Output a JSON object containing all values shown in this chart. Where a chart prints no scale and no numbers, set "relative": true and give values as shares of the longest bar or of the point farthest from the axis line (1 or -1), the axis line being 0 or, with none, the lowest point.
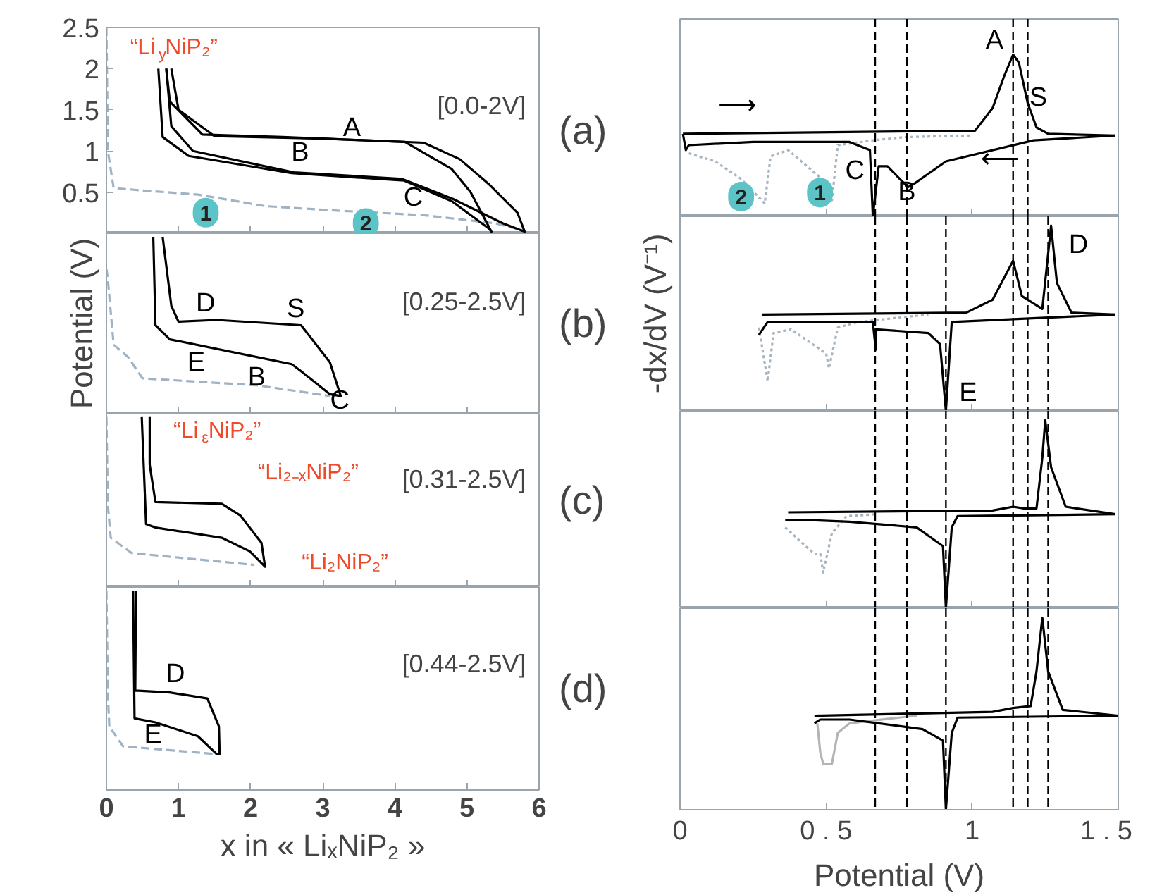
{
  "chart_data": [
    {
      "type": "line",
      "title": "(a)",
      "subtitle": "[0.0-2V]",
      "xlim": [
        0,
        6
      ],
      "ylim": [
        0,
        2.5
      ],
      "tick_labels": "y",
      "xticks": [
        {
          "value": 0,
          "label": null
        },
        {
          "value": 1,
          "label": null
        },
        {
          "value": 2,
          "label": null
        },
        {
          "value": 3,
          "label": null
        },
        {
          "value": 4,
          "label": null
        },
        {
          "value": 5,
          "label": null
        },
        {
          "value": 6,
          "label": null
        }
      ],
      "yticks": [
        0.5,
        1,
        1.5,
        2,
        2.5
      ],
      "series": [
        {
          "color": "#9fb3c4",
          "line_style": "dashed",
          "x": [
            0,
            0.02,
            0.1,
            0.5,
            1.27,
            2.2,
            3.1,
            4.4,
            5.4,
            5.8
          ],
          "values": [
            2.5,
            1.0,
            0.55,
            0.52,
            0.47,
            0.33,
            0.28,
            0.22,
            0.12,
            0.03
          ]
        },
        {
          "color": "#000000",
          "line_style": "solid",
          "x": [
            0.72,
            0.78,
            1.14,
            2.57,
            4.13,
            4.79,
            5.3,
            5.34,
            5.05,
            4.79,
            4.14,
            2.44,
            1.33,
            0.88,
            0.83
          ],
          "values": [
            2.0,
            1.17,
            0.94,
            0.73,
            0.64,
            0.39,
            0.06,
            0.02,
            0.5,
            0.78,
            1.11,
            1.17,
            1.2,
            1.6,
            2.0
          ]
        },
        {
          "color": "#000000",
          "line_style": "solid",
          "x": [
            0.83,
            0.9,
            1.2,
            2.6,
            4.1,
            4.8,
            5.5,
            5.8,
            5.7,
            5.3,
            4.9,
            4.4,
            3.0,
            1.5,
            1.0,
            0.9
          ],
          "values": [
            2.0,
            1.3,
            1.0,
            0.74,
            0.66,
            0.42,
            0.12,
            0.02,
            0.25,
            0.6,
            0.9,
            1.1,
            1.15,
            1.18,
            1.5,
            2.0
          ]
        }
      ],
      "annotations": [
        "“Li$_{y}$NiP₂”",
        "A",
        "B",
        "C",
        "1",
        "2"
      ]
    },
    {
      "type": "line",
      "relative": true,
      "title": "(b)",
      "subtitle": "[0.25-2.5V]",
      "ylabel": "Potential (V)",
      "xlim": [
        0,
        6
      ],
      "tick_labels": false,
      "xticks": [
        {
          "value": 0,
          "label": null
        },
        {
          "value": 1,
          "label": null
        },
        {
          "value": 2,
          "label": null
        },
        {
          "value": 3,
          "label": null
        },
        {
          "value": 4,
          "label": null
        },
        {
          "value": 5,
          "label": null
        },
        {
          "value": 6,
          "label": null
        }
      ],
      "series": [
        {
          "color": "#9fb3c4",
          "line_style": "dashed",
          "x": [
            0,
            0.02,
            0.1,
            0.3,
            0.5,
            2.1,
            3.1
          ],
          "values": [
            0.82,
            0.76,
            0.39,
            0.32,
            0.2,
            0.16,
            0.1
          ]
        },
        {
          "color": "#000000",
          "line_style": "solid",
          "x": [
            0.65,
            0.68,
            0.88,
            2.57,
            2.7,
            3.1,
            3.25,
            3.1,
            2.7,
            1.53,
            1.0,
            0.9,
            0.78
          ],
          "values": [
            1,
            0.5,
            0.42,
            0.28,
            0.24,
            0.11,
            0.1,
            0.29,
            0.5,
            0.53,
            0.52,
            0.61,
            1
          ]
        }
      ],
      "annotations": [
        "D",
        "S",
        "E",
        "B",
        "C"
      ]
    },
    {
      "type": "line",
      "relative": true,
      "title": "(c)",
      "subtitle": "[0.31-2.5V]",
      "xlim": [
        0,
        6
      ],
      "tick_labels": false,
      "xticks": [
        {
          "value": 0,
          "label": null
        },
        {
          "value": 1,
          "label": null
        },
        {
          "value": 2,
          "label": null
        },
        {
          "value": 3,
          "label": null
        },
        {
          "value": 4,
          "label": null
        },
        {
          "value": 5,
          "label": null
        },
        {
          "value": 6,
          "label": null
        }
      ],
      "series": [
        {
          "color": "#9fb3c4",
          "line_style": "dashed",
          "x": [
            0,
            0.02,
            0.06,
            0.35,
            2.05
          ],
          "values": [
            1,
            0.48,
            0.29,
            0.2,
            0.13
          ]
        },
        {
          "color": "#000000",
          "line_style": "solid",
          "x": [
            0.49,
            0.55,
            0.68,
            1.6,
            1.99,
            2.2,
            2.15,
            1.86,
            1.6,
            0.68,
            0.6,
            0.6
          ],
          "values": [
            1,
            0.37,
            0.35,
            0.29,
            0.21,
            0.12,
            0.26,
            0.42,
            0.49,
            0.5,
            0.72,
            1
          ]
        }
      ],
      "annotations": [
        "“Li$_{ε}$NiP₂”",
        "“Li₂₋ₓNiP₂”",
        "“Li₂NiP₂”"
      ]
    },
    {
      "type": "line",
      "relative": true,
      "title": "(d)",
      "subtitle": "[0.44-2.5V]",
      "xlabel": "x in « LiₓNiP₂ »",
      "xlim": [
        0,
        6
      ],
      "tick_labels": "x",
      "xticks": [
        0,
        1,
        2,
        3,
        4,
        5,
        6
      ],
      "series": [
        {
          "color": "#9fb3c4",
          "line_style": "dashed",
          "x": [
            0,
            0.02,
            0.04,
            0.23,
            1.53
          ],
          "values": [
            1,
            0.48,
            0.32,
            0.22,
            0.18
          ]
        },
        {
          "color": "#000000",
          "line_style": "solid",
          "x": [
            0.37,
            0.39,
            0.68,
            1.27,
            1.53,
            1.57,
            1.56,
            1.4,
            0.88,
            0.4,
            0.41
          ],
          "values": [
            1,
            0.36,
            0.34,
            0.27,
            0.18,
            0.18,
            0.32,
            0.46,
            0.49,
            0.5,
            1
          ]
        }
      ],
      "annotations": [
        "D",
        "E"
      ]
    },
    {
      "type": "line",
      "relative": true,
      "xlim": [
        0,
        1.5
      ],
      "tick_labels": false,
      "xticks": [
        {
          "value": 0,
          "label": null
        },
        {
          "value": 0.5,
          "label": null
        },
        {
          "value": 1,
          "label": null
        },
        {
          "value": 1.5,
          "label": null
        }
      ],
      "series": [
        {
          "color": "#a8b4bf",
          "line_style": "dotted",
          "x": [
            0.03,
            0.12,
            0.21,
            0.29,
            0.31,
            0.37,
            0.48,
            0.52,
            0.54,
            0.66,
            0.77,
            1.0
          ],
          "values": [
            0.39,
            0.34,
            0.23,
            0.08,
            0.37,
            0.41,
            0.24,
            0.1,
            0.44,
            0.47,
            0.49,
            0.5
          ]
        },
        {
          "color": "#000000",
          "line_style": "solid",
          "x": [
            0.01,
            1.01,
            1.07,
            1.11,
            1.14,
            1.16,
            1.19,
            1.22,
            1.26,
            1.49
          ],
          "values": [
            0.51,
            0.53,
            0.67,
            0.87,
            1,
            0.95,
            0.7,
            0.55,
            0.51,
            0.5
          ]
        },
        {
          "color": "#000000",
          "line_style": "solid",
          "x": [
            1.49,
            1.21,
            0.91,
            0.8,
            0.78,
            0.71,
            0.68,
            0.66,
            0.65,
            0.58,
            0.25,
            0.03,
            0.02,
            0.01
          ],
          "values": [
            0.5,
            0.47,
            0.34,
            0.2,
            0.18,
            0.31,
            0.31,
            0,
            0.41,
            0.46,
            0.46,
            0.44,
            0.41,
            0.51
          ]
        }
      ],
      "ref_lines": [
        {
          "axis": "x",
          "value": 0.668,
          "color": "#000000",
          "line_style": "dashed"
        },
        {
          "axis": "x",
          "value": 0.777,
          "color": "#000000",
          "line_style": "dashed"
        },
        {
          "axis": "x",
          "value": 1.14,
          "color": "#000000",
          "line_style": "dashed"
        },
        {
          "axis": "x",
          "value": 1.19,
          "color": "#000000",
          "line_style": "dashed"
        }
      ],
      "annotations": [
        "A",
        "S",
        "C",
        "B",
        "1",
        "2",
        "⟶",
        "⟵"
      ]
    },
    {
      "type": "line",
      "relative": true,
      "ylabel": "-dx/dV (V⁻¹)",
      "xlim": [
        0,
        1.5
      ],
      "tick_labels": false,
      "xticks": [
        {
          "value": 0,
          "label": null
        },
        {
          "value": 0.5,
          "label": null
        },
        {
          "value": 1,
          "label": null
        },
        {
          "value": 1.5,
          "label": null
        }
      ],
      "series": [
        {
          "color": "#a8b4bf",
          "line_style": "dotted",
          "x": [
            0.27,
            0.3,
            0.32,
            0.38,
            0.5,
            0.51,
            0.54,
            0.61,
            0.85
          ],
          "values": [
            0.45,
            0.16,
            0.42,
            0.44,
            0.31,
            0.23,
            0.45,
            0.48,
            0.52
          ]
        },
        {
          "color": "#000000",
          "line_style": "solid",
          "x": [
            0.28,
            0.98,
            1.07,
            1.14,
            1.17,
            1.24,
            1.27,
            1.29,
            1.34,
            1.49
          ],
          "values": [
            0.52,
            0.53,
            0.6,
            0.81,
            0.62,
            0.55,
            1,
            0.69,
            0.53,
            0.52
          ]
        },
        {
          "color": "#000000",
          "line_style": "solid",
          "x": [
            1.49,
            0.93,
            0.91,
            0.89,
            0.85,
            0.67,
            0.67,
            0.66,
            0.42,
            0.3,
            0.27
          ],
          "values": [
            0.52,
            0.48,
            0,
            0.36,
            0.42,
            0.44,
            0.33,
            0.48,
            0.48,
            0.48,
            0.41
          ]
        }
      ],
      "ref_lines": [
        {
          "axis": "x",
          "value": 0.668,
          "color": "#000000",
          "line_style": "dashed"
        },
        {
          "axis": "x",
          "value": 0.777,
          "color": "#000000",
          "line_style": "dashed"
        },
        {
          "axis": "x",
          "value": 0.91,
          "color": "#000000",
          "line_style": "dashed"
        },
        {
          "axis": "x",
          "value": 1.14,
          "color": "#000000",
          "line_style": "dashed"
        },
        {
          "axis": "x",
          "value": 1.19,
          "color": "#000000",
          "line_style": "dashed"
        },
        {
          "axis": "x",
          "value": 1.26,
          "color": "#000000",
          "line_style": "dashed"
        }
      ],
      "annotations": [
        "D",
        "E"
      ]
    },
    {
      "type": "line",
      "relative": true,
      "xlim": [
        0,
        1.5
      ],
      "tick_labels": false,
      "xticks": [
        {
          "value": 0,
          "label": null
        },
        {
          "value": 0.5,
          "label": null
        },
        {
          "value": 1,
          "label": null
        },
        {
          "value": 1.5,
          "label": null
        }
      ],
      "series": [
        {
          "color": "#a8b4bf",
          "line_style": "dotted",
          "x": [
            0.36,
            0.43,
            0.46,
            0.48,
            0.49,
            0.52,
            0.57,
            0.67
          ],
          "values": [
            0.43,
            0.33,
            0.29,
            0.29,
            0.19,
            0.4,
            0.49,
            0.5
          ]
        },
        {
          "color": "#000000",
          "line_style": "solid",
          "x": [
            0.37,
            1.07,
            1.14,
            1.18,
            1.22,
            1.24,
            1.25,
            1.27,
            1.32,
            1.49
          ],
          "values": [
            0.51,
            0.52,
            0.54,
            0.53,
            0.53,
            0.8,
            1,
            0.75,
            0.54,
            0.5
          ]
        },
        {
          "color": "#000000",
          "line_style": "solid",
          "x": [
            1.49,
            0.95,
            0.93,
            0.91,
            0.9,
            0.81,
            0.58,
            0.42,
            0.36
          ],
          "values": [
            0.5,
            0.49,
            0.43,
            0,
            0.33,
            0.43,
            0.46,
            0.47,
            0.47
          ]
        }
      ],
      "ref_lines": [
        {
          "axis": "x",
          "value": 0.668,
          "color": "#000000",
          "line_style": "dashed"
        },
        {
          "axis": "x",
          "value": 0.777,
          "color": "#000000",
          "line_style": "dashed"
        },
        {
          "axis": "x",
          "value": 0.91,
          "color": "#000000",
          "line_style": "dashed"
        },
        {
          "axis": "x",
          "value": 1.14,
          "color": "#000000",
          "line_style": "dashed"
        },
        {
          "axis": "x",
          "value": 1.19,
          "color": "#000000",
          "line_style": "dashed"
        },
        {
          "axis": "x",
          "value": 1.26,
          "color": "#000000",
          "line_style": "dashed"
        }
      ]
    },
    {
      "type": "line",
      "relative": true,
      "xlabel": "Potential (V)",
      "xlim": [
        0,
        1.5
      ],
      "tick_labels": "x",
      "xticks": [
        0,
        {
          "value": 0.5,
          "label": "0 . 5"
        },
        1,
        {
          "value": 1.5,
          "label": "1 . 5"
        }
      ],
      "series": [
        {
          "color": "#b4b4b4",
          "line_style": "solid",
          "x": [
            0.47,
            0.48,
            0.49,
            0.52,
            0.54,
            0.58,
            0.75,
            0.81
          ],
          "values": [
            0.45,
            0.3,
            0.24,
            0.24,
            0.4,
            0.45,
            0.48,
            0.49
          ]
        },
        {
          "color": "#000000",
          "line_style": "solid",
          "x": [
            0.46,
            1.07,
            1.14,
            1.2,
            1.22,
            1.24,
            1.26,
            1.31,
            1.5
          ],
          "values": [
            0.49,
            0.51,
            0.53,
            0.54,
            0.72,
            1,
            0.72,
            0.52,
            0.49
          ]
        },
        {
          "color": "#000000",
          "line_style": "solid",
          "x": [
            1.5,
            0.95,
            0.93,
            0.91,
            0.9,
            0.83,
            0.58,
            0.48,
            0.46
          ],
          "values": [
            0.49,
            0.48,
            0.4,
            0,
            0.36,
            0.42,
            0.47,
            0.47,
            0.45
          ]
        }
      ],
      "ref_lines": [
        {
          "axis": "x",
          "value": 0.668,
          "color": "#000000",
          "line_style": "dashed"
        },
        {
          "axis": "x",
          "value": 0.777,
          "color": "#000000",
          "line_style": "dashed"
        },
        {
          "axis": "x",
          "value": 0.91,
          "color": "#000000",
          "line_style": "dashed"
        },
        {
          "axis": "x",
          "value": 1.14,
          "color": "#000000",
          "line_style": "dashed"
        },
        {
          "axis": "x",
          "value": 1.19,
          "color": "#000000",
          "line_style": "dashed"
        },
        {
          "axis": "x",
          "value": 1.26,
          "color": "#000000",
          "line_style": "dashed"
        }
      ]
    }
  ]
}
